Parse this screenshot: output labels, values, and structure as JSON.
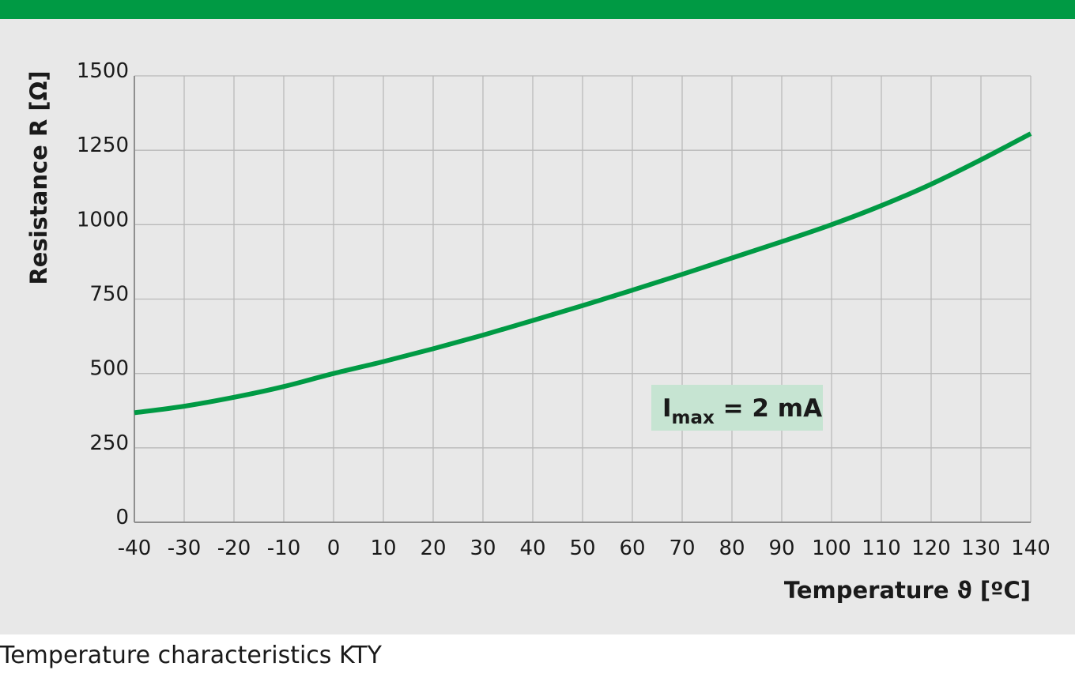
{
  "caption": "Temperature characteristics KTY",
  "colors": {
    "accent": "#009a44",
    "annotation_bg": "#c6e4d2",
    "panel_bg": "#e8e8e8"
  },
  "chart_data": {
    "type": "line",
    "xlabel": "Temperature ϑ [ºC]",
    "ylabel": "Resistance R [Ω]",
    "xlim": [
      -40,
      140
    ],
    "ylim": [
      0,
      1500
    ],
    "xticks": [
      -40,
      -30,
      -20,
      -10,
      0,
      10,
      20,
      30,
      40,
      50,
      60,
      70,
      80,
      90,
      100,
      110,
      120,
      130,
      140
    ],
    "yticks": [
      0,
      250,
      500,
      750,
      1000,
      1250,
      1500
    ],
    "grid": true,
    "annotation": {
      "main": "I",
      "sub": "max",
      "rest": " = 2 mA"
    },
    "series": [
      {
        "color": "#009a44",
        "x": [
          -40,
          -30,
          -20,
          -10,
          0,
          10,
          20,
          30,
          40,
          50,
          60,
          70,
          80,
          90,
          100,
          110,
          120,
          130,
          140
        ],
        "y": [
          368,
          390,
          420,
          456,
          500,
          540,
          583,
          629,
          678,
          728,
          780,
          833,
          888,
          943,
          1000,
          1064,
          1136,
          1218,
          1306
        ]
      }
    ]
  }
}
